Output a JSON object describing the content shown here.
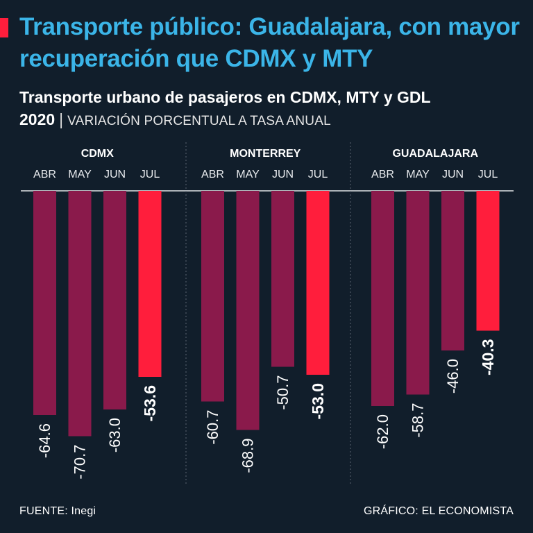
{
  "header": {
    "headline": "Transporte público: Guadalajara, con mayor recuperación que CDMX y MTY",
    "subtitle_bold": "Transporte urbano de pasajeros en CDMX, MTY y GDL 2020",
    "subtitle_separator": "|",
    "subtitle_light": "VARIACIÓN PORCENTUAL A TASA ANUAL"
  },
  "colors": {
    "background": "#111e2b",
    "headline": "#3bb5e8",
    "bar": "#8a1a4b",
    "bar_highlight": "#ff1e3c",
    "text": "#ffffff"
  },
  "chart_data": {
    "type": "bar",
    "title": "Transporte urbano de pasajeros en CDMX, MTY y GDL 2020",
    "ylabel": "Variación porcentual a tasa anual",
    "ylim": [
      -80,
      0
    ],
    "categories": [
      "ABR",
      "MAY",
      "JUN",
      "JUL"
    ],
    "highlight_category": "JUL",
    "panels": [
      {
        "name": "CDMX",
        "values": [
          -64.6,
          -70.7,
          -63.0,
          -53.6
        ]
      },
      {
        "name": "MONTERREY",
        "values": [
          -60.7,
          -68.9,
          -50.7,
          -53.0
        ]
      },
      {
        "name": "GUADALAJARA",
        "values": [
          -62.0,
          -58.7,
          -46.0,
          -40.3
        ]
      }
    ]
  },
  "footer": {
    "source": "FUENTE: Inegi",
    "credit": "GRÁFICO: EL ECONOMISTA"
  }
}
